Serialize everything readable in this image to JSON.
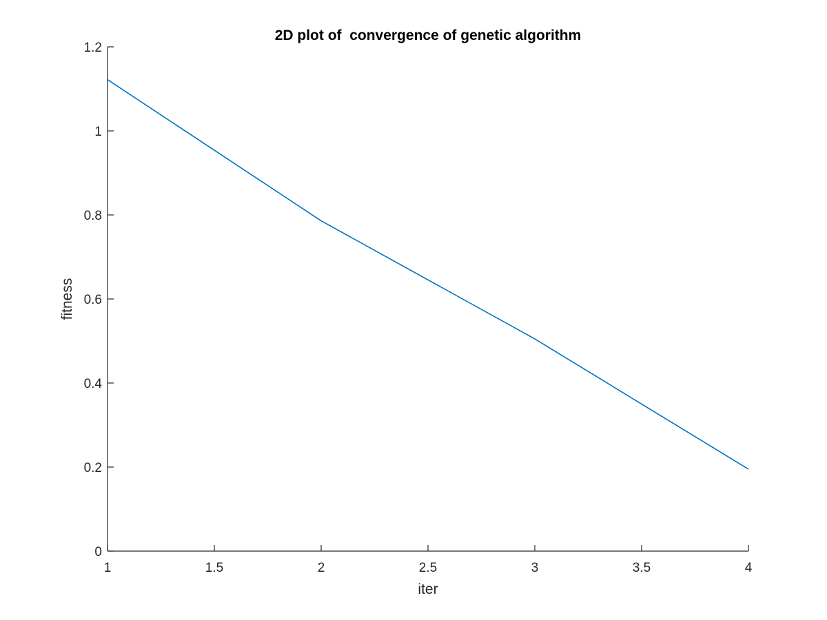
{
  "chart_data": {
    "type": "line",
    "title": "2D plot of  convergence of genetic algorithm",
    "xlabel": "iter",
    "ylabel": "fitness",
    "xlim": [
      1,
      4
    ],
    "ylim": [
      0,
      1.2
    ],
    "x_ticks": [
      "1",
      "1.5",
      "2",
      "2.5",
      "3",
      "3.5",
      "4"
    ],
    "y_ticks": [
      "0",
      "0.2",
      "0.4",
      "0.6",
      "0.8",
      "1",
      "1.2"
    ],
    "grid": false,
    "series": [
      {
        "x": [
          1,
          2,
          3,
          4
        ],
        "y": [
          1.122,
          0.786,
          0.505,
          0.195
        ],
        "color": "#0072BD"
      }
    ]
  }
}
